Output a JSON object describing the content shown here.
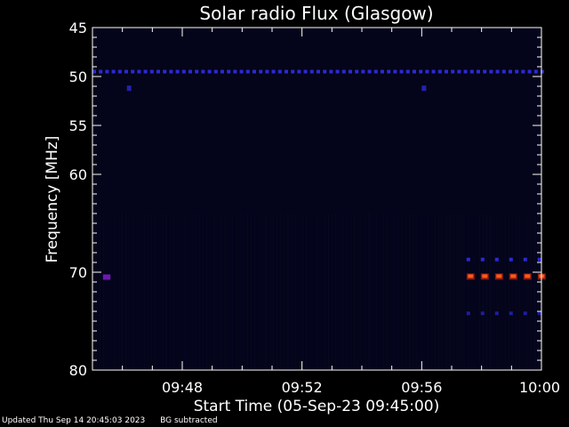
{
  "chart_data": {
    "type": "heatmap",
    "title": "Solar radio Flux (Glasgow)",
    "xlabel": "Start Time (05-Sep-23 09:45:00)",
    "ylabel": "Frequency [MHz]",
    "x_ticks": [
      "09:48",
      "09:52",
      "09:56",
      "10:00"
    ],
    "x_range_minutes": [
      0,
      15
    ],
    "x_tick_minutes": [
      3,
      7,
      11,
      15
    ],
    "y_ticks": [
      45,
      50,
      55,
      60,
      70,
      80
    ],
    "y_range": [
      45,
      80
    ],
    "bands": [
      {
        "freq_mhz": 49.5,
        "start_min": 0,
        "end_min": 15,
        "color": "#2a2ad6",
        "style": "dashed"
      },
      {
        "freq_mhz": 51.2,
        "start_min": 1.15,
        "end_min": 1.3,
        "color": "#2222b0",
        "style": "point"
      },
      {
        "freq_mhz": 51.2,
        "start_min": 11.0,
        "end_min": 11.15,
        "color": "#2222b0",
        "style": "point"
      },
      {
        "freq_mhz": 70.5,
        "start_min": 0.35,
        "end_min": 0.6,
        "color": "#6a1ab0",
        "style": "point"
      },
      {
        "freq_mhz": 68.7,
        "start_min": 12.5,
        "end_min": 15,
        "color": "#2a2ad6",
        "style": "dashed"
      },
      {
        "freq_mhz": 70.4,
        "start_min": 12.5,
        "end_min": 15,
        "color": "#ff5a1a",
        "style": "hot"
      },
      {
        "freq_mhz": 74.2,
        "start_min": 12.5,
        "end_min": 15,
        "color": "#1e1e9a",
        "style": "dashed"
      }
    ]
  },
  "footer": {
    "updated": "Updated Thu Sep 14 20:45:03 2023",
    "note": "BG subtracted"
  },
  "colors": {
    "background": "#000000",
    "plot_bg": "#04041a",
    "axis": "#ffffff"
  }
}
